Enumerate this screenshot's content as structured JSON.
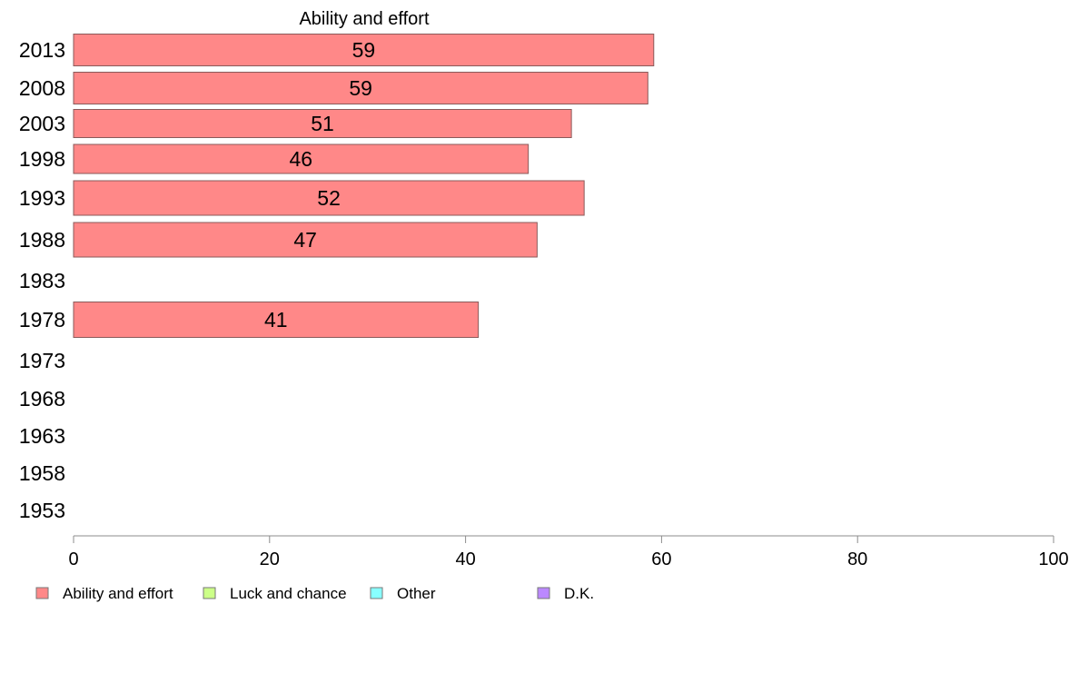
{
  "chart_data": {
    "type": "bar",
    "orientation": "horizontal",
    "title": "Ability and effort",
    "categories": [
      "2013",
      "2008",
      "2003",
      "1998",
      "1993",
      "1988",
      "1983",
      "1978",
      "1973",
      "1968",
      "1963",
      "1958",
      "1953"
    ],
    "series": [
      {
        "name": "Ability and effort",
        "color": "#ff8888",
        "values": [
          59.2,
          58.6,
          50.8,
          46.4,
          52.1,
          47.3,
          null,
          41.3,
          null,
          null,
          null,
          null,
          null
        ]
      }
    ],
    "data_labels": [
      "59",
      "59",
      "51",
      "46",
      "52",
      "47",
      "",
      "41",
      "",
      "",
      "",
      "",
      ""
    ],
    "xlim": [
      0,
      100
    ],
    "xticks": [
      "0",
      "20",
      "40",
      "60",
      "80",
      "100"
    ],
    "xlabel": "",
    "ylabel": "",
    "grid": false,
    "legend": {
      "placement": "bottom-left",
      "entries": [
        {
          "label": "Ability and effort",
          "color": "#ff8888"
        },
        {
          "label": "Luck and chance",
          "color": "#ccff88"
        },
        {
          "label": "Other",
          "color": "#88ffff"
        },
        {
          "label": "D.K.",
          "color": "#bb88ff"
        }
      ]
    }
  }
}
